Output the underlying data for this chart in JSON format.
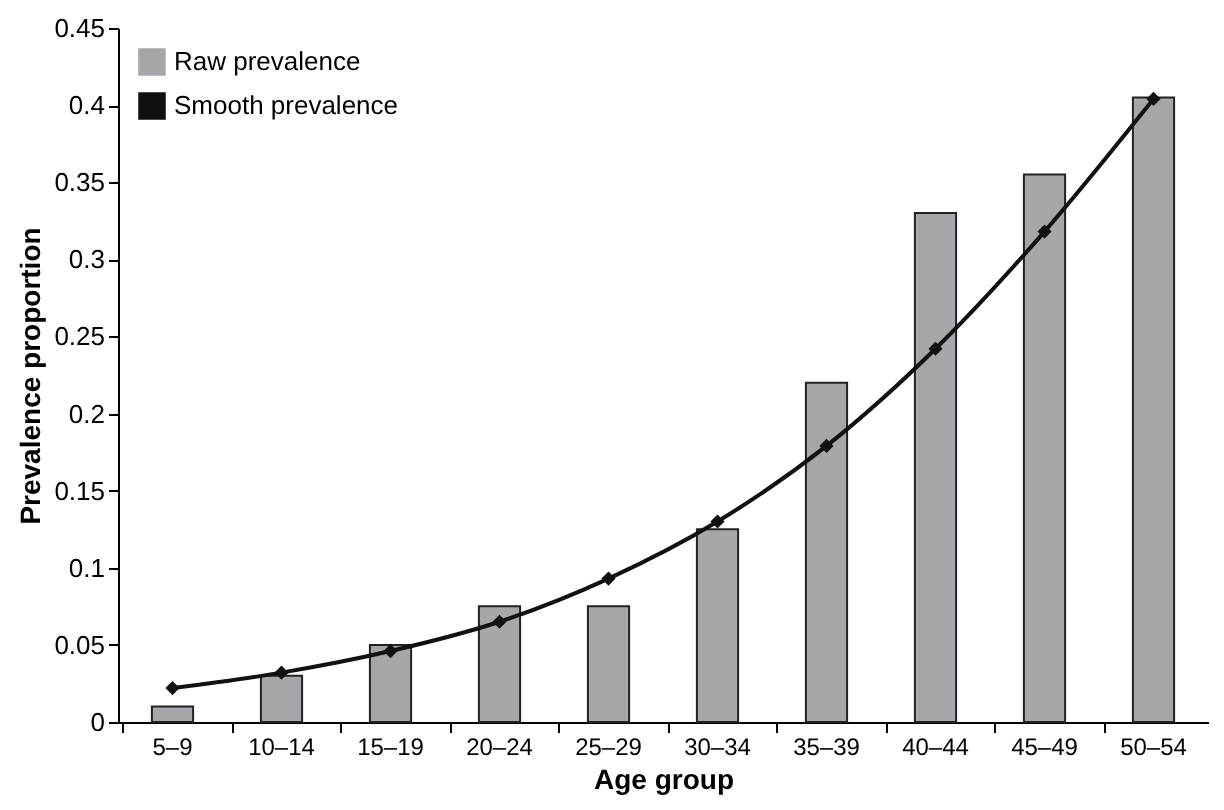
{
  "chart_data": {
    "type": "bar",
    "xlabel": "Age group",
    "ylabel": "Prevalence proportion",
    "categories": [
      "5–9",
      "10–14",
      "15–19",
      "20–24",
      "25–29",
      "30–34",
      "35–39",
      "40–44",
      "45–49",
      "50–54"
    ],
    "series": [
      {
        "name": "Raw prevalence",
        "color": "#a6a7ab",
        "values": [
          0.01,
          0.03,
          0.05,
          0.075,
          0.075,
          0.125,
          0.22,
          0.33,
          0.355,
          0.405
        ]
      },
      {
        "name": "Smooth prevalence",
        "type": "line",
        "color": "#111111",
        "marker": "diamond",
        "values": [
          0.022,
          0.032,
          0.046,
          0.065,
          0.093,
          0.13,
          0.179,
          0.242,
          0.318,
          0.404
        ]
      }
    ],
    "ylim": [
      0,
      0.45
    ],
    "yticks": [
      0,
      0.05,
      0.1,
      0.15,
      0.2,
      0.25,
      0.3,
      0.35,
      0.4,
      0.45
    ],
    "grid": false,
    "legend": "top left"
  }
}
